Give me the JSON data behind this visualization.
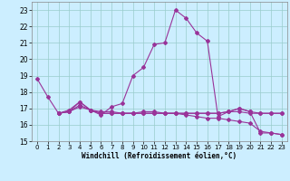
{
  "xlabel": "Windchill (Refroidissement éolien,°C)",
  "bg_color": "#cceeff",
  "line_color": "#993399",
  "grid_color": "#99cccc",
  "xlim": [
    -0.5,
    23.5
  ],
  "ylim": [
    15,
    23.5
  ],
  "yticks": [
    15,
    16,
    17,
    18,
    19,
    20,
    21,
    22,
    23
  ],
  "xticks": [
    0,
    1,
    2,
    3,
    4,
    5,
    6,
    7,
    8,
    9,
    10,
    11,
    12,
    13,
    14,
    15,
    16,
    17,
    18,
    19,
    20,
    21,
    22,
    23
  ],
  "line1_x": [
    0,
    1,
    2,
    3,
    4,
    5,
    6,
    7,
    8,
    9,
    10,
    11,
    12,
    13,
    14,
    15,
    16,
    17,
    18,
    19,
    20,
    21,
    22,
    23
  ],
  "line1_y": [
    18.8,
    17.7,
    16.7,
    16.9,
    17.4,
    16.9,
    16.6,
    17.1,
    17.3,
    19.0,
    19.5,
    20.9,
    21.0,
    23.0,
    22.5,
    21.6,
    21.1,
    16.5,
    16.8,
    17.0,
    16.8,
    15.5,
    15.5,
    15.4
  ],
  "line2_x": [
    2,
    3,
    4,
    5,
    6,
    7,
    8,
    9,
    10,
    11,
    12,
    13,
    14,
    15,
    16,
    17,
    18,
    19,
    20,
    21,
    22,
    23
  ],
  "line2_y": [
    16.7,
    16.8,
    17.4,
    16.9,
    16.7,
    16.7,
    16.7,
    16.7,
    16.7,
    16.7,
    16.7,
    16.7,
    16.7,
    16.7,
    16.7,
    16.7,
    16.8,
    17.0,
    16.8,
    16.7,
    16.7,
    16.7
  ],
  "line3_x": [
    2,
    3,
    4,
    5,
    6,
    7,
    8,
    9,
    10,
    11,
    12,
    13,
    14,
    15,
    16,
    17,
    18,
    19,
    20,
    21,
    22,
    23
  ],
  "line3_y": [
    16.7,
    16.8,
    17.2,
    16.9,
    16.8,
    16.8,
    16.7,
    16.7,
    16.7,
    16.7,
    16.7,
    16.7,
    16.7,
    16.7,
    16.7,
    16.7,
    16.8,
    16.8,
    16.7,
    16.7,
    16.7,
    16.7
  ],
  "line4_x": [
    2,
    3,
    4,
    5,
    6,
    7,
    8,
    9,
    10,
    11,
    12,
    13,
    14,
    15,
    16,
    17,
    18,
    19,
    20,
    21,
    22,
    23
  ],
  "line4_y": [
    16.7,
    16.8,
    17.1,
    16.9,
    16.7,
    16.7,
    16.7,
    16.7,
    16.8,
    16.8,
    16.7,
    16.7,
    16.6,
    16.5,
    16.4,
    16.4,
    16.3,
    16.2,
    16.1,
    15.6,
    15.5,
    15.4
  ]
}
